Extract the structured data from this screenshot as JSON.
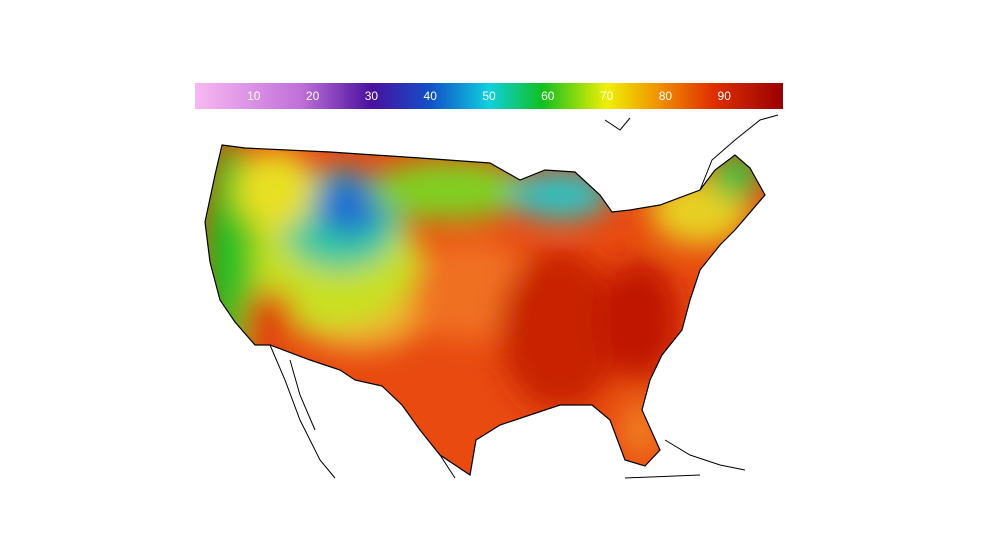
{
  "colorbar": {
    "range": [
      0,
      100
    ],
    "ticks": [
      10,
      20,
      30,
      40,
      50,
      60,
      70,
      80,
      90
    ]
  }
}
